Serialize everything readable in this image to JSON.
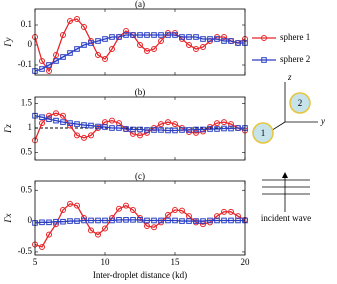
{
  "chart_data": [
    {
      "type": "line",
      "title": "(a)",
      "ylabel": "Γy",
      "x": [
        5,
        5.5,
        6,
        6.5,
        7,
        7.5,
        8,
        8.5,
        9,
        9.5,
        10,
        10.5,
        11,
        11.5,
        12,
        12.5,
        13,
        13.5,
        14,
        14.5,
        15,
        15.5,
        16,
        16.5,
        17,
        17.5,
        18,
        18.5,
        19,
        19.5,
        20
      ],
      "series": [
        {
          "name": "sphere 1",
          "color": "#e8262a",
          "marker": "circle",
          "values": [
            0.04,
            -0.08,
            -0.13,
            -0.05,
            0.05,
            0.12,
            0.13,
            0.09,
            0.02,
            -0.05,
            -0.07,
            -0.02,
            0.04,
            0.07,
            0.05,
            0,
            -0.03,
            -0.02,
            0.02,
            0.06,
            0.06,
            0.03,
            0,
            -0.02,
            -0.01,
            0.02,
            0.04,
            0.04,
            0.02,
            0.01,
            0.03
          ]
        },
        {
          "name": "sphere 2",
          "color": "#2a3fc4",
          "marker": "square",
          "values": [
            -0.13,
            -0.12,
            -0.1,
            -0.08,
            -0.06,
            -0.04,
            -0.02,
            0,
            0.01,
            0.02,
            0.03,
            0.04,
            0.04,
            0.05,
            0.05,
            0.05,
            0.05,
            0.05,
            0.05,
            0.05,
            0.05,
            0.04,
            0.04,
            0.04,
            0.03,
            0.03,
            0.03,
            0.02,
            0.02,
            0.01,
            0.01
          ]
        }
      ],
      "xlim": [
        5,
        20
      ],
      "xticks": [
        5,
        10,
        15,
        20
      ],
      "ylim": [
        -0.15,
        0.18
      ],
      "yticks": [
        -0.1,
        0,
        0.1
      ],
      "legend": "outside-right"
    },
    {
      "type": "line",
      "title": "(b)",
      "ylabel": "Γz",
      "x": [
        5,
        5.5,
        6,
        6.5,
        7,
        7.5,
        8,
        8.5,
        9,
        9.5,
        10,
        10.5,
        11,
        11.5,
        12,
        12.5,
        13,
        13.5,
        14,
        14.5,
        15,
        15.5,
        16,
        16.5,
        17,
        17.5,
        18,
        18.5,
        19,
        19.5,
        20
      ],
      "series": [
        {
          "name": "sphere 1",
          "color": "#e8262a",
          "marker": "circle",
          "values": [
            0.75,
            1.1,
            1.25,
            1.3,
            1.25,
            1.05,
            0.85,
            0.8,
            0.85,
            1.0,
            1.12,
            1.15,
            1.1,
            0.98,
            0.88,
            0.85,
            0.9,
            1.0,
            1.08,
            1.12,
            1.08,
            1.0,
            0.92,
            0.9,
            0.93,
            1.02,
            1.1,
            1.12,
            1.08,
            1.0,
            0.95
          ]
        },
        {
          "name": "sphere 2",
          "color": "#2a3fc4",
          "marker": "square",
          "values": [
            1.25,
            1.22,
            1.18,
            1.15,
            1.12,
            1.1,
            1.08,
            1.06,
            1.05,
            1.03,
            1.02,
            1.0,
            1.0,
            0.98,
            0.97,
            0.97,
            0.96,
            0.96,
            0.96,
            0.95,
            0.95,
            0.96,
            0.96,
            0.97,
            0.97,
            0.98,
            0.98,
            0.99,
            0.99,
            1.0,
            1.0
          ]
        }
      ],
      "reference_line": 1,
      "xlim": [
        5,
        20
      ],
      "xticks": [
        5,
        10,
        15,
        20
      ],
      "ylim": [
        0.35,
        1.63
      ],
      "yticks": [
        0.5,
        1,
        1.5
      ]
    },
    {
      "type": "line",
      "title": "(c)",
      "ylabel": "Γx",
      "xlabel": "Inter-droplet distance (kd)",
      "x": [
        5,
        5.5,
        6,
        6.5,
        7,
        7.5,
        8,
        8.5,
        9,
        9.5,
        10,
        10.5,
        11,
        11.5,
        12,
        12.5,
        13,
        13.5,
        14,
        14.5,
        15,
        15.5,
        16,
        16.5,
        17,
        17.5,
        18,
        18.5,
        19,
        19.5,
        20
      ],
      "series": [
        {
          "name": "sphere 1",
          "color": "#e8262a",
          "marker": "circle",
          "values": [
            -0.38,
            -0.42,
            -0.22,
            -0.05,
            0.18,
            0.28,
            0.25,
            0.05,
            -0.15,
            -0.22,
            -0.12,
            0.05,
            0.2,
            0.25,
            0.18,
            0.05,
            -0.08,
            -0.1,
            -0.02,
            0.1,
            0.18,
            0.17,
            0.08,
            -0.02,
            -0.05,
            -0.02,
            0.08,
            0.15,
            0.15,
            0.08,
            0.02
          ]
        },
        {
          "name": "sphere 2",
          "color": "#2a3fc4",
          "marker": "square",
          "values": [
            -0.03,
            -0.02,
            -0.02,
            -0.01,
            -0.01,
            0,
            0,
            0.01,
            0.01,
            0.01,
            0.01,
            0.01,
            0.02,
            0.02,
            0.02,
            0.02,
            0.01,
            0.01,
            0.01,
            0.01,
            0.01,
            0,
            0,
            0,
            0,
            0.01,
            0.01,
            0.01,
            0.01,
            0.01,
            0.01
          ]
        }
      ],
      "xlim": [
        5,
        20
      ],
      "xticks": [
        5,
        10,
        15,
        20
      ],
      "ylim": [
        -0.55,
        0.65
      ],
      "yticks": [
        -0.5,
        0,
        0.5
      ]
    }
  ],
  "diagram": {
    "axis_z": "z",
    "axis_y": "y",
    "sphere_1": "1",
    "sphere_2": "2",
    "caption": "incident wave"
  }
}
